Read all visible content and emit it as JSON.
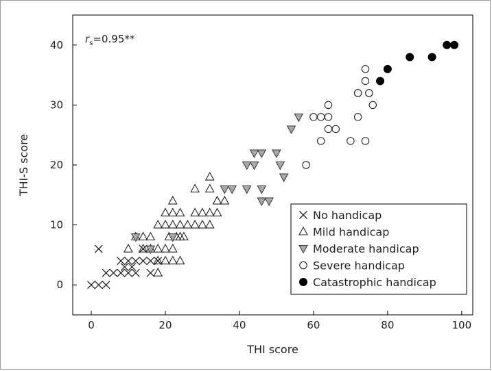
{
  "chart_data": {
    "type": "scatter",
    "title": "",
    "xlabel": "THI score",
    "ylabel": "THI-S score",
    "xlim": [
      -5,
      103
    ],
    "ylim": [
      -5,
      45
    ],
    "xticks": [
      0,
      20,
      40,
      60,
      80,
      100
    ],
    "yticks": [
      0,
      10,
      20,
      30,
      40
    ],
    "annotation": {
      "r": "r",
      "sub": "s",
      "value": "=0.95**"
    },
    "legend_position": "bottom-right",
    "series": [
      {
        "name": "No handicap",
        "marker": "x",
        "points": [
          [
            0,
            0
          ],
          [
            2,
            0
          ],
          [
            4,
            0
          ],
          [
            2,
            6
          ],
          [
            4,
            2
          ],
          [
            6,
            2
          ],
          [
            8,
            2
          ],
          [
            10,
            2
          ],
          [
            12,
            2
          ],
          [
            8,
            4
          ],
          [
            10,
            4
          ],
          [
            12,
            4
          ],
          [
            14,
            4
          ],
          [
            16,
            4
          ],
          [
            18,
            4
          ],
          [
            14,
            6
          ],
          [
            16,
            2
          ],
          [
            9,
            3
          ],
          [
            11,
            3
          ]
        ]
      },
      {
        "name": "Mild handicap",
        "marker": "triangle-up",
        "points": [
          [
            10,
            6
          ],
          [
            12,
            8
          ],
          [
            14,
            6
          ],
          [
            14,
            8
          ],
          [
            16,
            6
          ],
          [
            16,
            8
          ],
          [
            18,
            6
          ],
          [
            20,
            6
          ],
          [
            22,
            6
          ],
          [
            18,
            2
          ],
          [
            18,
            4
          ],
          [
            20,
            4
          ],
          [
            22,
            4
          ],
          [
            24,
            4
          ],
          [
            18,
            10
          ],
          [
            20,
            10
          ],
          [
            20,
            12
          ],
          [
            22,
            12
          ],
          [
            22,
            10
          ],
          [
            24,
            12
          ],
          [
            24,
            10
          ],
          [
            26,
            10
          ],
          [
            28,
            10
          ],
          [
            30,
            10
          ],
          [
            32,
            10
          ],
          [
            28,
            12
          ],
          [
            30,
            12
          ],
          [
            32,
            12
          ],
          [
            34,
            12
          ],
          [
            22,
            14
          ],
          [
            28,
            16
          ],
          [
            32,
            16
          ],
          [
            32,
            18
          ],
          [
            34,
            14
          ],
          [
            36,
            14
          ],
          [
            21,
            8
          ],
          [
            23,
            8
          ],
          [
            25,
            8
          ],
          [
            24,
            8
          ]
        ]
      },
      {
        "name": "Moderate handicap",
        "marker": "triangle-down",
        "points": [
          [
            12,
            8
          ],
          [
            16,
            6
          ],
          [
            22,
            8
          ],
          [
            36,
            16
          ],
          [
            38,
            16
          ],
          [
            42,
            16
          ],
          [
            42,
            20
          ],
          [
            44,
            20
          ],
          [
            44,
            22
          ],
          [
            46,
            22
          ],
          [
            46,
            16
          ],
          [
            46,
            14
          ],
          [
            48,
            14
          ],
          [
            50,
            22
          ],
          [
            51,
            20
          ],
          [
            52,
            18
          ],
          [
            54,
            26
          ],
          [
            56,
            28
          ]
        ]
      },
      {
        "name": "Severe handicap",
        "marker": "circle-open",
        "points": [
          [
            58,
            20
          ],
          [
            60,
            28
          ],
          [
            62,
            28
          ],
          [
            64,
            28
          ],
          [
            62,
            24
          ],
          [
            64,
            26
          ],
          [
            66,
            26
          ],
          [
            64,
            30
          ],
          [
            70,
            24
          ],
          [
            72,
            28
          ],
          [
            72,
            32
          ],
          [
            74,
            24
          ],
          [
            74,
            34
          ],
          [
            74,
            36
          ],
          [
            75,
            32
          ],
          [
            76,
            30
          ]
        ]
      },
      {
        "name": "Catastrophic handicap",
        "marker": "circle-filled",
        "points": [
          [
            78,
            34
          ],
          [
            80,
            36
          ],
          [
            86,
            38
          ],
          [
            92,
            38
          ],
          [
            96,
            40
          ],
          [
            98,
            40
          ]
        ]
      }
    ]
  }
}
